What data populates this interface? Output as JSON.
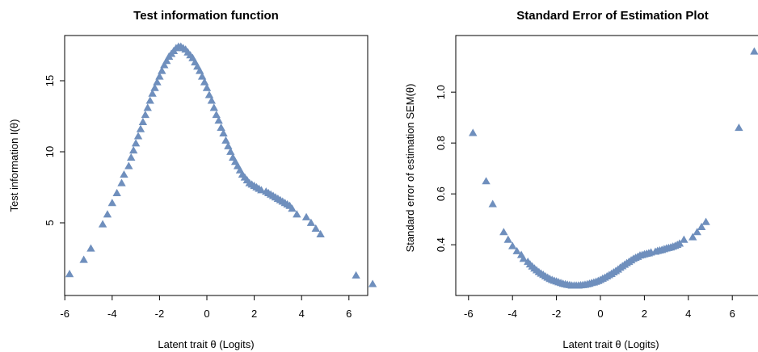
{
  "colors": {
    "marker": "#6f8fbd",
    "axis": "#000000"
  },
  "chart_data": [
    {
      "type": "scatter",
      "marker": "triangle",
      "title": "Test information function",
      "xlabel": "Latent trait θ (Logits)",
      "ylabel": "Test information I(θ)",
      "xlim": [
        -6.2,
        7.3
      ],
      "ylim": [
        0.4,
        18.0
      ],
      "xticks": [
        -6,
        -4,
        -2,
        0,
        2,
        4,
        6
      ],
      "xtick_labels": [
        "-6",
        "-4",
        "-2",
        "0",
        "2",
        "4",
        "6"
      ],
      "yticks": [
        5,
        10,
        15
      ],
      "ytick_labels": [
        "5",
        "10",
        "15"
      ],
      "series": [
        {
          "x": [
            -5.8,
            -5.2,
            -4.9,
            -4.4,
            -4.2,
            -4.0,
            -3.8,
            -3.6,
            -3.5,
            -3.3,
            -3.2,
            -3.1,
            -3.0,
            -2.9,
            -2.8,
            -2.7,
            -2.6,
            -2.5,
            -2.4,
            -2.3,
            -2.2,
            -2.1,
            -2.0,
            -1.9,
            -1.8,
            -1.7,
            -1.6,
            -1.5,
            -1.4,
            -1.3,
            -1.2,
            -1.1,
            -1.0,
            -0.9,
            -0.8,
            -0.7,
            -0.6,
            -0.5,
            -0.4,
            -0.3,
            -0.2,
            -0.1,
            0.0,
            0.1,
            0.2,
            0.3,
            0.4,
            0.5,
            0.6,
            0.7,
            0.8,
            0.9,
            1.0,
            1.1,
            1.2,
            1.3,
            1.4,
            1.5,
            1.6,
            1.7,
            1.8,
            1.9,
            2.0,
            2.1,
            2.2,
            2.3,
            2.5,
            2.6,
            2.7,
            2.8,
            2.9,
            3.0,
            3.1,
            3.2,
            3.3,
            3.4,
            3.5,
            3.6,
            3.8,
            4.2,
            4.4,
            4.6,
            4.8,
            6.3,
            7.0
          ],
          "y": [
            1.4,
            2.4,
            3.2,
            4.9,
            5.6,
            6.4,
            7.1,
            7.8,
            8.4,
            9.0,
            9.6,
            10.1,
            10.6,
            11.1,
            11.6,
            12.1,
            12.6,
            13.1,
            13.6,
            14.1,
            14.5,
            14.9,
            15.3,
            15.7,
            16.1,
            16.4,
            16.7,
            16.9,
            17.1,
            17.3,
            17.4,
            17.4,
            17.3,
            17.2,
            17.0,
            16.8,
            16.6,
            16.3,
            16.0,
            15.7,
            15.3,
            14.9,
            14.5,
            14.0,
            13.6,
            13.1,
            12.6,
            12.2,
            11.7,
            11.3,
            10.8,
            10.4,
            10.0,
            9.6,
            9.3,
            9.0,
            8.7,
            8.4,
            8.2,
            8.0,
            7.8,
            7.7,
            7.6,
            7.5,
            7.4,
            7.3,
            7.2,
            7.1,
            7.0,
            6.9,
            6.8,
            6.7,
            6.6,
            6.5,
            6.4,
            6.3,
            6.2,
            6.0,
            5.6,
            5.4,
            5.0,
            4.6,
            4.2,
            1.3,
            0.7
          ]
        }
      ]
    },
    {
      "type": "scatter",
      "marker": "triangle",
      "title": "Standard Error of Estimation Plot",
      "xlabel": "Latent trait θ (Logits)",
      "ylabel": "Standard error of estimation SEM(θ)",
      "xlim": [
        -6.2,
        7.3
      ],
      "ylim": [
        0.21,
        1.2
      ],
      "xticks": [
        -6,
        -4,
        -2,
        0,
        2,
        4,
        6
      ],
      "xtick_labels": [
        "-6",
        "-4",
        "-2",
        "0",
        "2",
        "4",
        "6"
      ],
      "yticks": [
        0.4,
        0.6,
        0.8,
        1.0
      ],
      "ytick_labels": [
        "0.4",
        "0.6",
        "0.8",
        "1.0"
      ],
      "series": [
        {
          "x": [
            -5.8,
            -5.2,
            -4.9,
            -4.4,
            -4.2,
            -4.0,
            -3.8,
            -3.6,
            -3.5,
            -3.3,
            -3.2,
            -3.1,
            -3.0,
            -2.9,
            -2.8,
            -2.7,
            -2.6,
            -2.5,
            -2.4,
            -2.3,
            -2.2,
            -2.1,
            -2.0,
            -1.9,
            -1.8,
            -1.7,
            -1.6,
            -1.5,
            -1.4,
            -1.3,
            -1.2,
            -1.1,
            -1.0,
            -0.9,
            -0.8,
            -0.7,
            -0.6,
            -0.5,
            -0.4,
            -0.3,
            -0.2,
            -0.1,
            0.0,
            0.1,
            0.2,
            0.3,
            0.4,
            0.5,
            0.6,
            0.7,
            0.8,
            0.9,
            1.0,
            1.1,
            1.2,
            1.3,
            1.4,
            1.5,
            1.6,
            1.7,
            1.8,
            1.9,
            2.0,
            2.1,
            2.2,
            2.3,
            2.5,
            2.6,
            2.7,
            2.8,
            2.9,
            3.0,
            3.1,
            3.2,
            3.3,
            3.4,
            3.5,
            3.6,
            3.8,
            4.2,
            4.4,
            4.6,
            4.8,
            6.3,
            7.0
          ],
          "y": [
            0.84,
            0.65,
            0.56,
            0.45,
            0.42,
            0.395,
            0.375,
            0.36,
            0.345,
            0.333,
            0.323,
            0.315,
            0.307,
            0.3,
            0.293,
            0.287,
            0.282,
            0.276,
            0.271,
            0.266,
            0.262,
            0.259,
            0.256,
            0.253,
            0.25,
            0.247,
            0.245,
            0.243,
            0.242,
            0.24,
            0.24,
            0.24,
            0.24,
            0.241,
            0.242,
            0.243,
            0.245,
            0.247,
            0.25,
            0.252,
            0.255,
            0.258,
            0.262,
            0.267,
            0.271,
            0.276,
            0.281,
            0.286,
            0.292,
            0.297,
            0.303,
            0.31,
            0.316,
            0.322,
            0.328,
            0.333,
            0.339,
            0.345,
            0.349,
            0.353,
            0.358,
            0.36,
            0.363,
            0.365,
            0.367,
            0.37,
            0.373,
            0.376,
            0.378,
            0.38,
            0.383,
            0.386,
            0.388,
            0.39,
            0.393,
            0.396,
            0.4,
            0.405,
            0.42,
            0.43,
            0.45,
            0.47,
            0.49,
            0.86,
            1.16
          ]
        }
      ]
    }
  ]
}
